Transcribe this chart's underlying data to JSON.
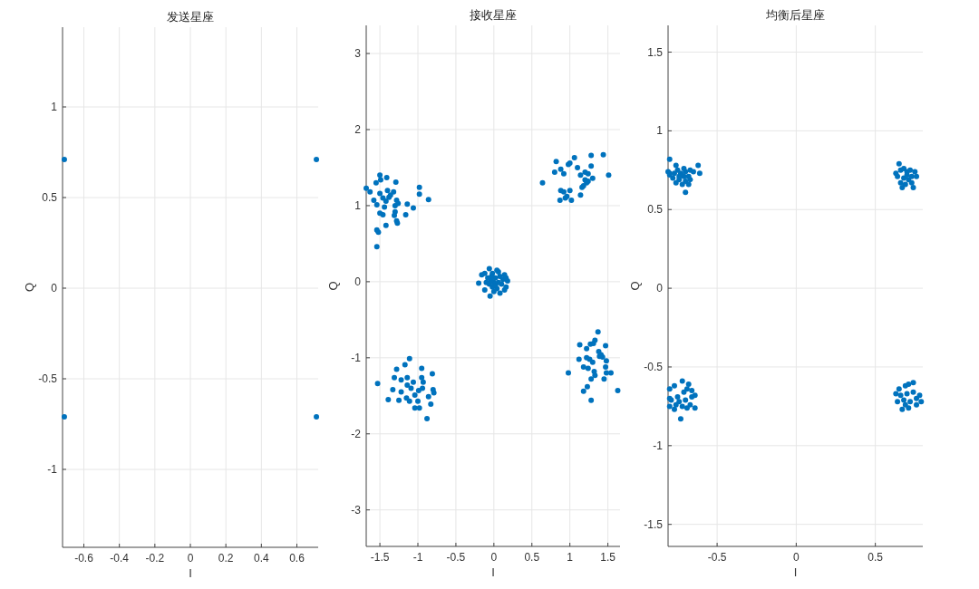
{
  "chart_data": [
    {
      "type": "scatter",
      "title": "发送星座",
      "xlabel": "I",
      "ylabel": "Q",
      "xlim": [
        -0.72,
        0.72
      ],
      "ylim": [
        -1.43,
        1.44
      ],
      "xticks": [
        -0.6,
        -0.4,
        -0.2,
        0,
        0.2,
        0.4,
        0.6
      ],
      "yticks": [
        -1,
        -0.5,
        0,
        0.5,
        1
      ],
      "grid": true,
      "marker": "circle",
      "series": [
        {
          "color": "#0072bd",
          "x": [
            -0.71,
            -0.71,
            0.71,
            0.71
          ],
          "values": [
            0.71,
            -0.71,
            0.71,
            -0.71
          ]
        }
      ]
    },
    {
      "type": "scatter",
      "title": "接收星座",
      "xlabel": "I",
      "ylabel": "Q",
      "xlim": [
        -1.68,
        1.66
      ],
      "ylim": [
        -3.48,
        3.37
      ],
      "xticks": [
        -1.5,
        -1,
        -0.5,
        0,
        0.5,
        1,
        1.5
      ],
      "yticks": [
        -3,
        -2,
        -1,
        0,
        1,
        2,
        3
      ],
      "grid": true,
      "marker": "circle",
      "series": [
        {
          "color": "#0072bd",
          "x": [
            -1.68,
            -1.63,
            -1.5,
            -1.49,
            -1.55,
            -1.41,
            -1.29,
            -1.5,
            -1.4,
            -1.32,
            -1.46,
            -1.42,
            -1.38,
            -1.28,
            -1.58,
            -1.54,
            -1.44,
            -1.3,
            -1.26,
            -1.14,
            -1.06,
            -0.98,
            -0.98,
            -0.86,
            -1.5,
            -1.46,
            -1.3,
            -1.31,
            -1.16,
            -1.28,
            -1.27,
            -1.42,
            -1.54,
            -1.52,
            -1.54,
            -1.36,
            0.64,
            0.82,
            0.8,
            0.88,
            0.92,
            0.98,
            1.0,
            1.06,
            1.1,
            1.14,
            1.2,
            1.24,
            1.28,
            1.28,
            1.3,
            1.22,
            1.18,
            1.16,
            1.44,
            1.51,
            0.88,
            0.92,
            1.0,
            0.96,
            0.87,
            0.94,
            1.02,
            1.14,
            1.2,
            1.24,
            -0.06,
            -0.16,
            -0.2,
            -0.12,
            -0.05,
            0.08,
            0.16,
            0.18,
            0.14,
            0.06,
            -0.02,
            -0.08,
            -0.06,
            -0.02,
            0.04,
            0.1,
            0.12,
            0.02,
            0.0,
            0.06,
            -0.04,
            0.02,
            0.08,
            -0.1,
            0.0,
            0.14,
            -0.12,
            0.04,
            0.16,
            -0.03,
            -1.53,
            -1.39,
            -1.33,
            -1.31,
            -1.28,
            -1.25,
            -1.22,
            -1.17,
            -1.14,
            -1.14,
            -1.11,
            -1.15,
            -1.11,
            -1.06,
            -1.04,
            -1.04,
            -0.99,
            -0.98,
            -1.0,
            -0.95,
            -0.95,
            -0.93,
            -0.94,
            -0.88,
            -0.86,
            -0.83,
            -0.81,
            -0.8,
            -0.79,
            -1.22,
            -1.09,
            0.98,
            1.13,
            1.18,
            1.22,
            1.23,
            1.27,
            1.28,
            1.28,
            1.31,
            1.33,
            1.37,
            1.22,
            1.26,
            1.3,
            1.18,
            1.24,
            1.32,
            1.33,
            1.38,
            1.41,
            1.43,
            1.47,
            1.48,
            1.47,
            1.48,
            1.45,
            1.54,
            1.63,
            1.39,
            1.12
          ],
          "values": [
            1.23,
            1.18,
            1.4,
            1.34,
            1.3,
            1.37,
            1.31,
            1.16,
            1.2,
            1.18,
            1.1,
            1.06,
            1.11,
            1.07,
            1.07,
            1.01,
            0.98,
            1.0,
            1.03,
            1.02,
            0.97,
            1.24,
            1.15,
            1.08,
            0.9,
            0.88,
            0.92,
            0.87,
            0.88,
            0.8,
            0.77,
            0.74,
            0.68,
            0.65,
            0.46,
            1.14,
            1.3,
            1.58,
            1.44,
            1.48,
            1.42,
            1.54,
            1.56,
            1.63,
            1.5,
            1.4,
            1.44,
            1.42,
            1.66,
            1.52,
            1.36,
            1.3,
            1.26,
            1.24,
            1.67,
            1.4,
            1.2,
            1.18,
            1.2,
            1.12,
            1.07,
            1.1,
            1.07,
            1.14,
            1.34,
            1.32,
            0.17,
            0.09,
            -0.02,
            -0.11,
            -0.19,
            -0.15,
            -0.07,
            0.01,
            0.09,
            0.13,
            0.11,
            0.05,
            -0.03,
            -0.07,
            -0.09,
            -0.03,
            0.03,
            0.05,
            -0.01,
            -0.01,
            0.02,
            -0.05,
            0.07,
            -0.01,
            -0.13,
            -0.11,
            0.11,
            0.15,
            0.05,
            0.07,
            -1.34,
            -1.55,
            -1.42,
            -1.26,
            -1.15,
            -1.56,
            -1.29,
            -1.09,
            -1.26,
            -1.36,
            -1.01,
            -1.53,
            -1.57,
            -1.32,
            -1.49,
            -1.66,
            -1.43,
            -1.66,
            -1.57,
            -1.26,
            -1.14,
            -1.32,
            -1.4,
            -1.8,
            -1.51,
            -1.61,
            -1.21,
            -1.42,
            -1.46,
            -1.45,
            -1.4,
            -1.2,
            -0.83,
            -1.44,
            -0.88,
            -1.38,
            -0.82,
            -1.56,
            -1.28,
            -0.81,
            -0.77,
            -0.66,
            -1.0,
            -1.02,
            -1.06,
            -1.12,
            -1.14,
            -1.18,
            -1.23,
            -0.92,
            -0.96,
            -0.99,
            -0.84,
            -1.04,
            -1.12,
            -1.2,
            -1.28,
            -1.2,
            -1.43,
            -0.98,
            -1.02
          ]
        }
      ]
    },
    {
      "type": "scatter",
      "title": "均衡后星座",
      "xlabel": "I",
      "ylabel": "Q",
      "xlim": [
        -0.81,
        0.8
      ],
      "ylim": [
        -1.64,
        1.67
      ],
      "xticks": [
        -0.5,
        0,
        0.5
      ],
      "yticks": [
        -1.5,
        -1,
        -0.5,
        0,
        0.5,
        1,
        1.5
      ],
      "grid": true,
      "marker": "circle",
      "series": [
        {
          "color": "#0072bd",
          "x": [
            -0.8,
            -0.76,
            -0.81,
            -0.8,
            -0.78,
            -0.75,
            -0.74,
            -0.73,
            -0.71,
            -0.7,
            -0.68,
            -0.67,
            -0.65,
            -0.62,
            -0.61,
            -0.72,
            -0.7,
            -0.7,
            -0.76,
            -0.71,
            -0.68,
            -0.74,
            -0.67,
            -0.77,
            -0.8,
            0.65,
            0.63,
            0.66,
            0.68,
            0.7,
            0.72,
            0.75,
            0.76,
            0.68,
            0.71,
            0.66,
            0.67,
            0.73,
            0.74,
            0.7,
            0.64,
            0.73,
            0.69,
            -0.72,
            -0.77,
            -0.8,
            -0.68,
            -0.69,
            -0.71,
            -0.75,
            -0.79,
            -0.8,
            -0.74,
            -0.7,
            -0.66,
            -0.64,
            -0.67,
            -0.64,
            -0.72,
            -0.77,
            -0.8,
            -0.73,
            -0.69,
            -0.76,
            -0.66,
            0.74,
            0.71,
            0.69,
            0.65,
            0.63,
            0.66,
            0.7,
            0.74,
            0.76,
            0.72,
            0.68,
            0.64,
            0.67,
            0.71,
            0.76,
            0.79,
            0.78,
            0.69
          ],
          "values": [
            0.82,
            0.78,
            0.74,
            0.72,
            0.7,
            0.75,
            0.69,
            0.73,
            0.76,
            0.74,
            0.71,
            0.75,
            0.74,
            0.78,
            0.73,
            0.66,
            0.68,
            0.61,
            0.67,
            0.71,
            0.66,
            0.71,
            0.69,
            0.73,
            0.73,
            0.79,
            0.73,
            0.75,
            0.76,
            0.74,
            0.75,
            0.74,
            0.71,
            0.7,
            0.69,
            0.67,
            0.64,
            0.67,
            0.64,
            0.72,
            0.71,
            0.71,
            0.66,
            -0.59,
            -0.62,
            -0.64,
            -0.61,
            -0.64,
            -0.66,
            -0.69,
            -0.71,
            -0.7,
            -0.72,
            -0.71,
            -0.69,
            -0.68,
            -0.74,
            -0.76,
            -0.75,
            -0.77,
            -0.75,
            -0.83,
            -0.76,
            -0.74,
            -0.65,
            -0.6,
            -0.61,
            -0.62,
            -0.64,
            -0.67,
            -0.68,
            -0.67,
            -0.66,
            -0.7,
            -0.72,
            -0.71,
            -0.72,
            -0.77,
            -0.76,
            -0.74,
            -0.72,
            -0.68,
            -0.74
          ]
        }
      ]
    }
  ]
}
